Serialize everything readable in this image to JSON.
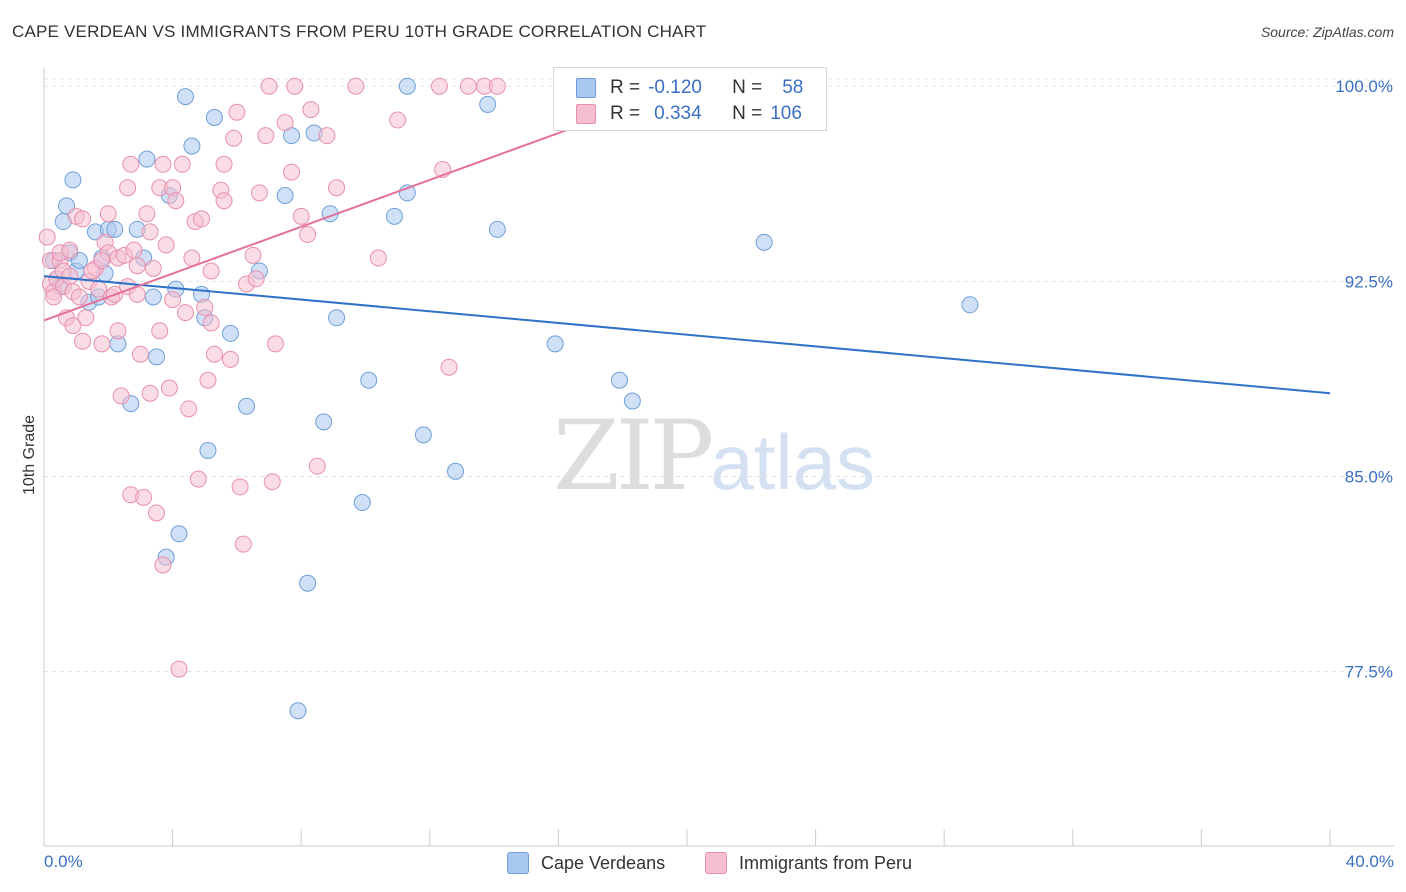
{
  "title": "CAPE VERDEAN VS IMMIGRANTS FROM PERU 10TH GRADE CORRELATION CHART",
  "source": "Source: ZipAtlas.com",
  "watermark": {
    "zip": "ZIP",
    "atlas": "atlas"
  },
  "stats": {
    "row1": {
      "r_label": "R =",
      "r_value": "-0.120",
      "n_label": "N =",
      "n_value": "58"
    },
    "row2": {
      "r_label": "R =",
      "r_value": "0.334",
      "n_label": "N =",
      "n_value": "106"
    }
  },
  "legend": {
    "series1": "Cape Verdeans",
    "series2": "Immigrants from Peru"
  },
  "colors": {
    "blue_fill": "#a9c8f0",
    "blue_stroke": "#6f9fd8",
    "blue_line": "#2e72c8",
    "pink_fill": "#f6bfd0",
    "pink_stroke": "#e890ae",
    "pink_line": "#e4709a",
    "axis_text": "#3a6fc4",
    "grid": "#e2e2e2"
  },
  "chart_data": {
    "type": "scatter",
    "title": "CAPE VERDEAN VS IMMIGRANTS FROM PERU 10TH GRADE CORRELATION CHART",
    "xlabel": "",
    "ylabel": "10th Grade",
    "xlim": [
      0,
      40
    ],
    "ylim": [
      70.8,
      100.7
    ],
    "x_tick_labels": [
      "0.0%",
      "40.0%"
    ],
    "y_ticks": [
      100.0,
      92.5,
      85.0,
      77.5
    ],
    "y_tick_labels": [
      "100.0%",
      "92.5%",
      "85.0%",
      "77.5%"
    ],
    "grid": true,
    "legend_position": "bottom-center",
    "series": [
      {
        "name": "Cape Verdeans",
        "r": -0.12,
        "n": 58,
        "trend": {
          "x": [
            0,
            40
          ],
          "y": [
            92.7,
            88.2
          ]
        },
        "points": [
          [
            0.3,
            93.3
          ],
          [
            0.4,
            92.6
          ],
          [
            0.6,
            94.8
          ],
          [
            0.7,
            95.4
          ],
          [
            0.8,
            93.6
          ],
          [
            0.9,
            96.4
          ],
          [
            1.0,
            92.9
          ],
          [
            1.1,
            93.3
          ],
          [
            1.4,
            91.7
          ],
          [
            1.6,
            94.4
          ],
          [
            1.8,
            93.4
          ],
          [
            1.9,
            92.8
          ],
          [
            2.0,
            94.5
          ],
          [
            2.2,
            94.5
          ],
          [
            2.3,
            90.1
          ],
          [
            2.7,
            87.8
          ],
          [
            2.9,
            94.5
          ],
          [
            3.1,
            93.4
          ],
          [
            3.2,
            97.2
          ],
          [
            3.4,
            91.9
          ],
          [
            3.5,
            89.6
          ],
          [
            3.8,
            81.9
          ],
          [
            3.9,
            95.8
          ],
          [
            4.1,
            92.2
          ],
          [
            4.2,
            82.8
          ],
          [
            4.4,
            99.6
          ],
          [
            4.6,
            97.7
          ],
          [
            4.9,
            92.0
          ],
          [
            5.0,
            91.1
          ],
          [
            5.1,
            86.0
          ],
          [
            5.3,
            98.8
          ],
          [
            5.8,
            90.5
          ],
          [
            6.3,
            87.7
          ],
          [
            6.7,
            92.9
          ],
          [
            7.5,
            95.8
          ],
          [
            7.7,
            98.1
          ],
          [
            7.9,
            76.0
          ],
          [
            8.2,
            80.9
          ],
          [
            8.4,
            98.2
          ],
          [
            8.7,
            87.1
          ],
          [
            8.9,
            95.1
          ],
          [
            9.1,
            91.1
          ],
          [
            9.9,
            84.0
          ],
          [
            10.1,
            88.7
          ],
          [
            10.9,
            95.0
          ],
          [
            11.3,
            95.9
          ],
          [
            11.3,
            100.0
          ],
          [
            11.8,
            86.6
          ],
          [
            12.8,
            85.2
          ],
          [
            13.8,
            99.3
          ],
          [
            14.1,
            94.5
          ],
          [
            15.9,
            90.1
          ],
          [
            17.9,
            88.7
          ],
          [
            18.3,
            87.9
          ],
          [
            22.4,
            94.0
          ],
          [
            28.8,
            91.6
          ],
          [
            0.5,
            92.3
          ],
          [
            1.7,
            91.9
          ]
        ]
      },
      {
        "name": "Immigrants from Peru",
        "r": 0.334,
        "n": 106,
        "trend": {
          "x": [
            0,
            20
          ],
          "y": [
            91.0,
            100.0
          ]
        },
        "points": [
          [
            0.1,
            94.2
          ],
          [
            0.2,
            92.4
          ],
          [
            0.2,
            93.3
          ],
          [
            0.3,
            92.1
          ],
          [
            0.4,
            92.6
          ],
          [
            0.5,
            93.3
          ],
          [
            0.5,
            93.6
          ],
          [
            0.6,
            92.9
          ],
          [
            0.6,
            92.3
          ],
          [
            0.7,
            91.1
          ],
          [
            0.8,
            92.7
          ],
          [
            0.9,
            92.1
          ],
          [
            0.9,
            90.8
          ],
          [
            1.0,
            95.0
          ],
          [
            1.1,
            91.9
          ],
          [
            1.2,
            90.2
          ],
          [
            1.2,
            94.9
          ],
          [
            1.3,
            91.1
          ],
          [
            1.4,
            92.5
          ],
          [
            1.6,
            93.0
          ],
          [
            1.7,
            92.2
          ],
          [
            1.8,
            90.1
          ],
          [
            1.9,
            94.0
          ],
          [
            2.0,
            95.1
          ],
          [
            2.0,
            93.6
          ],
          [
            2.1,
            91.9
          ],
          [
            2.2,
            92.0
          ],
          [
            2.3,
            93.4
          ],
          [
            2.3,
            90.6
          ],
          [
            2.4,
            88.1
          ],
          [
            2.5,
            93.5
          ],
          [
            2.6,
            92.3
          ],
          [
            2.6,
            96.1
          ],
          [
            2.7,
            97.0
          ],
          [
            2.7,
            84.3
          ],
          [
            2.8,
            93.7
          ],
          [
            2.9,
            92.0
          ],
          [
            3.0,
            89.7
          ],
          [
            3.1,
            84.2
          ],
          [
            3.2,
            95.1
          ],
          [
            3.3,
            94.4
          ],
          [
            3.4,
            93.0
          ],
          [
            3.5,
            83.6
          ],
          [
            3.6,
            96.1
          ],
          [
            3.6,
            90.6
          ],
          [
            3.7,
            81.6
          ],
          [
            3.8,
            93.9
          ],
          [
            3.9,
            88.4
          ],
          [
            4.0,
            96.1
          ],
          [
            4.1,
            95.6
          ],
          [
            4.2,
            77.6
          ],
          [
            4.3,
            97.0
          ],
          [
            4.4,
            91.3
          ],
          [
            4.5,
            87.6
          ],
          [
            4.6,
            93.4
          ],
          [
            4.7,
            94.8
          ],
          [
            4.8,
            84.9
          ],
          [
            4.9,
            94.9
          ],
          [
            5.0,
            91.5
          ],
          [
            5.1,
            88.7
          ],
          [
            5.2,
            92.9
          ],
          [
            5.3,
            89.7
          ],
          [
            5.5,
            96.0
          ],
          [
            5.6,
            97.0
          ],
          [
            5.6,
            95.6
          ],
          [
            5.8,
            89.5
          ],
          [
            5.9,
            98.0
          ],
          [
            6.0,
            99.0
          ],
          [
            6.1,
            84.6
          ],
          [
            6.2,
            82.4
          ],
          [
            6.3,
            92.4
          ],
          [
            6.5,
            93.5
          ],
          [
            6.7,
            95.9
          ],
          [
            6.9,
            98.1
          ],
          [
            7.0,
            100.0
          ],
          [
            7.1,
            84.8
          ],
          [
            7.2,
            90.1
          ],
          [
            7.5,
            98.6
          ],
          [
            7.7,
            96.7
          ],
          [
            7.8,
            100.0
          ],
          [
            8.0,
            95.0
          ],
          [
            8.2,
            94.3
          ],
          [
            8.3,
            99.1
          ],
          [
            8.5,
            85.4
          ],
          [
            8.8,
            98.1
          ],
          [
            9.1,
            96.1
          ],
          [
            9.7,
            100.0
          ],
          [
            10.4,
            93.4
          ],
          [
            11.0,
            98.7
          ],
          [
            12.3,
            100.0
          ],
          [
            12.4,
            96.8
          ],
          [
            12.6,
            89.2
          ],
          [
            13.2,
            100.0
          ],
          [
            13.7,
            100.0
          ],
          [
            14.1,
            100.0
          ],
          [
            16.3,
            100.0
          ],
          [
            0.3,
            91.9
          ],
          [
            1.5,
            92.9
          ],
          [
            2.9,
            93.1
          ],
          [
            4.0,
            91.8
          ],
          [
            5.2,
            90.9
          ],
          [
            6.6,
            92.6
          ],
          [
            3.3,
            88.2
          ],
          [
            1.8,
            93.3
          ],
          [
            0.8,
            93.7
          ],
          [
            3.7,
            97.0
          ]
        ]
      }
    ]
  }
}
